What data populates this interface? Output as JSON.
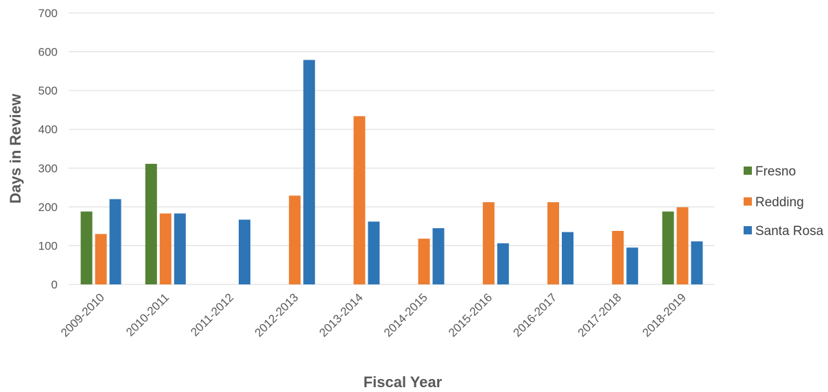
{
  "chart_data": {
    "type": "bar",
    "title": "",
    "xlabel": "Fiscal Year",
    "ylabel": "Days in Review",
    "ylim": [
      0,
      700
    ],
    "yticks": [
      0,
      100,
      200,
      300,
      400,
      500,
      600,
      700
    ],
    "grid": true,
    "legend_position": "right",
    "categories": [
      "2009-2010",
      "2010-2011",
      "2011-2012",
      "2012-2013",
      "2013-2014",
      "2014-2015",
      "2015-2016",
      "2016-2017",
      "2017-2018",
      "2018-2019"
    ],
    "series": [
      {
        "name": "Fresno",
        "color": "#548235",
        "values": [
          188,
          311,
          null,
          null,
          null,
          null,
          null,
          null,
          null,
          188
        ]
      },
      {
        "name": "Redding",
        "color": "#ED7D31",
        "values": [
          130,
          183,
          null,
          229,
          434,
          118,
          212,
          212,
          138,
          199
        ]
      },
      {
        "name": "Santa Rosa",
        "color": "#2E75B6",
        "values": [
          220,
          183,
          167,
          579,
          162,
          145,
          106,
          135,
          95,
          111
        ]
      }
    ]
  }
}
